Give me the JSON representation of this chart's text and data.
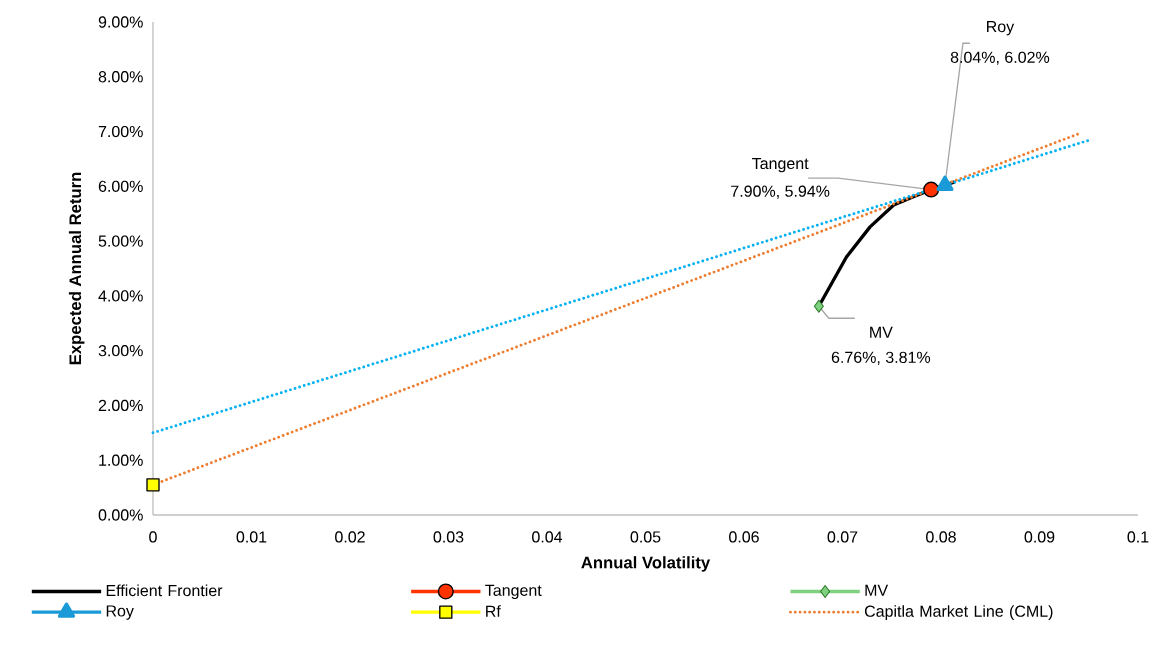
{
  "chart_data": {
    "type": "line",
    "xlabel": "Annual Volatility",
    "ylabel": "Expected Annual Return",
    "xlim": [
      0,
      0.1
    ],
    "xticks": [
      0,
      0.01,
      0.02,
      0.03,
      0.04,
      0.05,
      0.06,
      0.07,
      0.08,
      0.09,
      0.1
    ],
    "ylim": [
      0,
      9
    ],
    "yticks": [
      {
        "value": 0,
        "label": "0.00%"
      },
      {
        "value": 1,
        "label": "1.00%"
      },
      {
        "value": 2,
        "label": "2.00%"
      },
      {
        "value": 3,
        "label": "3.00%"
      },
      {
        "value": 4,
        "label": "4.00%"
      },
      {
        "value": 5,
        "label": "5.00%"
      },
      {
        "value": 6,
        "label": "6.00%"
      },
      {
        "value": 7,
        "label": "7.00%"
      },
      {
        "value": 8,
        "label": "8.00%"
      },
      {
        "value": 9,
        "label": "9.00%"
      }
    ],
    "grid": false,
    "legend": "bottom",
    "series": [
      {
        "name": "Efficient Frontier",
        "type": "line",
        "color": "#000000",
        "marker": "none",
        "line_style": "solid",
        "x": [
          0.0676,
          0.0704,
          0.0728,
          0.0752,
          0.0772,
          0.079,
          0.0814
        ],
        "values": [
          3.81,
          4.71,
          5.26,
          5.66,
          5.81,
          5.94,
          6.08
        ]
      },
      {
        "name": "Tangent",
        "type": "line",
        "color": "#ff3300",
        "marker": "circle",
        "line_style": "solid",
        "x": [
          0.079
        ],
        "values": [
          5.94
        ]
      },
      {
        "name": "MV",
        "type": "line",
        "color": "#7fd07f",
        "marker": "diamond",
        "line_style": "solid",
        "x": [
          0.0676
        ],
        "values": [
          3.81
        ]
      },
      {
        "name": "Roy",
        "type": "line",
        "color": "#1a9ad6",
        "marker": "triangle",
        "line_style": "solid",
        "x": [
          0.0804
        ],
        "values": [
          6.02
        ]
      },
      {
        "name": "Rf",
        "type": "line",
        "color": "#ffff00",
        "marker": "square",
        "line_style": "solid",
        "x": [
          0
        ],
        "values": [
          0.55
        ]
      },
      {
        "name": "Capitla Market Line (CML)",
        "type": "line",
        "color": "#ed7d31",
        "marker": "none",
        "line_style": "dotted",
        "x": [
          0,
          0.094
        ],
        "values": [
          0.55,
          6.96
        ]
      },
      {
        "type": "line",
        "color": "#00b0f0",
        "marker": "none",
        "line_style": "dotted",
        "x": [
          0,
          0.095
        ],
        "values": [
          1.5,
          6.84
        ]
      }
    ],
    "annotations": [
      {
        "text": "Tangent",
        "x": 0.079,
        "y": 5.94
      },
      {
        "text": "7.90%, 5.94%",
        "x": 0.079,
        "y": 5.94
      },
      {
        "text": "Roy",
        "x": 0.0804,
        "y": 6.02
      },
      {
        "text": "8.04%, 6.02%",
        "x": 0.0804,
        "y": 6.02
      },
      {
        "text": "MV",
        "x": 0.0676,
        "y": 3.81
      },
      {
        "text": "6.76%, 3.81%",
        "x": 0.0676,
        "y": 3.81
      }
    ]
  }
}
